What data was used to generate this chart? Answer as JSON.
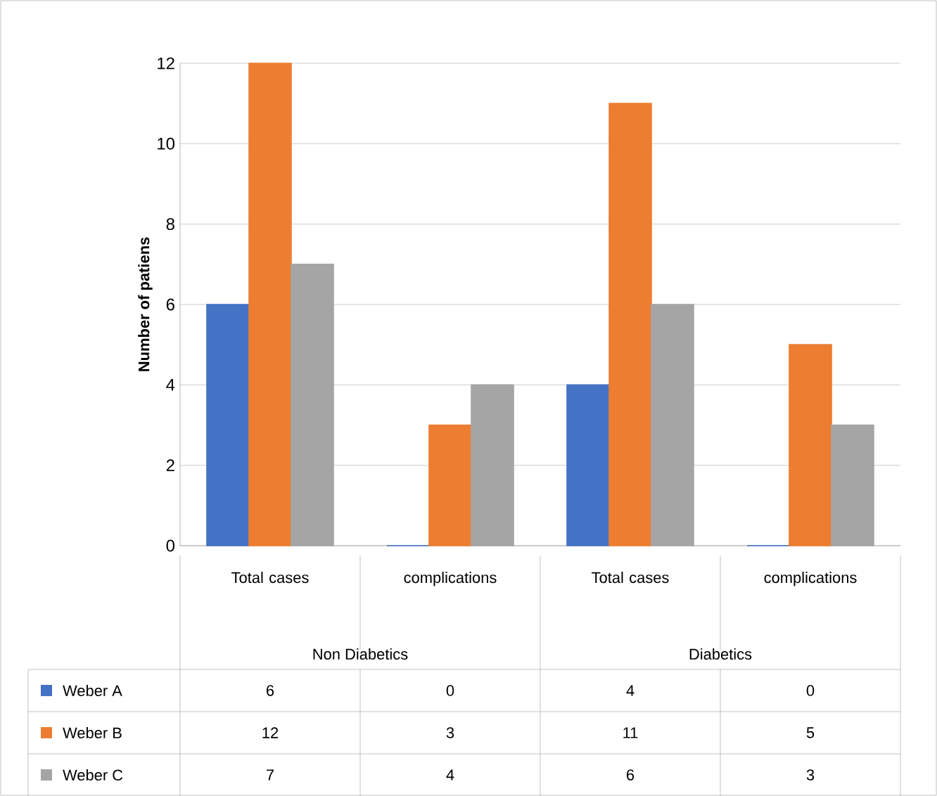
{
  "chart_data": {
    "type": "bar",
    "ylabel": "Number of patiens",
    "categories": [
      "Total cases",
      "complications",
      "Total cases",
      "complications"
    ],
    "annotations": [
      "Non Diabetics",
      "Diabetics"
    ],
    "series": [
      {
        "name": "Weber  A",
        "color": "#4472c4",
        "values": [
          6,
          0,
          4,
          0
        ]
      },
      {
        "name": "Weber  B",
        "color": "#ed7d31",
        "values": [
          12,
          3,
          11,
          5
        ]
      },
      {
        "name": "Weber C",
        "color": "#a5a5a5",
        "values": [
          7,
          4,
          6,
          3
        ]
      }
    ],
    "ylim": [
      0,
      12
    ],
    "yticks": [
      0,
      2,
      4,
      6,
      8,
      10,
      12
    ],
    "grid": "y",
    "legend": "bottom",
    "data_labels": true
  }
}
